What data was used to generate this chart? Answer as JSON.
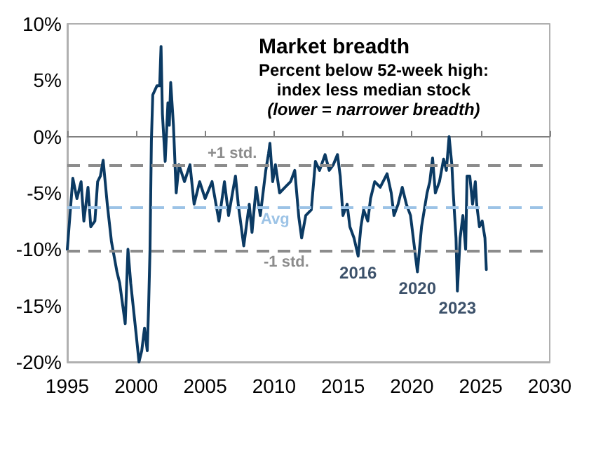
{
  "chart_data": {
    "type": "line",
    "title": "Market breadth",
    "subtitle": "Percent below 52-week high:\nindex less median stock",
    "annotations": [
      "(lower = narrower breadth)",
      {
        "text": "2016",
        "x": 2016.1,
        "y": -10.6
      },
      {
        "text": "2020",
        "x": 2020.4,
        "y": -12
      },
      {
        "text": "2023",
        "x": 2023.3,
        "y": -13.7
      }
    ],
    "series": [
      {
        "color": "#0b3a63",
        "x": [
          1995.0,
          1995.4,
          1995.7,
          1996.0,
          1996.2,
          1996.5,
          1996.7,
          1997.0,
          1997.2,
          1997.4,
          1997.6,
          1997.9,
          1998.2,
          1998.6,
          1998.8,
          1999.2,
          1999.4,
          1999.6,
          2000.0,
          2000.2,
          2000.4,
          2000.6,
          2000.8,
          2000.9,
          2001.0,
          2001.1,
          2001.2,
          2001.5,
          2001.7,
          2001.8,
          2001.9,
          2002.1,
          2002.3,
          2002.4,
          2002.5,
          2002.7,
          2002.9,
          2003.1,
          2003.5,
          2003.9,
          2004.2,
          2004.6,
          2005.0,
          2005.5,
          2006.0,
          2006.4,
          2006.7,
          2007.2,
          2007.4,
          2007.8,
          2008.2,
          2008.4,
          2008.7,
          2009.0,
          2009.4,
          2009.6,
          2009.7,
          2009.9,
          2010.1,
          2010.4,
          2010.8,
          2011.2,
          2011.5,
          2011.8,
          2012.0,
          2012.3,
          2012.7,
          2013.0,
          2013.3,
          2013.7,
          2014.0,
          2014.3,
          2014.6,
          2014.8,
          2015.0,
          2015.3,
          2015.5,
          2015.8,
          2016.1,
          2016.3,
          2016.5,
          2016.8,
          2017.0,
          2017.3,
          2017.7,
          2018.2,
          2018.5,
          2018.7,
          2019.0,
          2019.3,
          2019.6,
          2019.9,
          2020.2,
          2020.4,
          2020.7,
          2020.9,
          2021.1,
          2021.3,
          2021.5,
          2021.7,
          2022.0,
          2022.3,
          2022.5,
          2022.7,
          2022.9,
          2023.0,
          2023.2,
          2023.3,
          2023.5,
          2023.7,
          2023.9,
          2024.0,
          2024.2,
          2024.4,
          2024.6,
          2024.7,
          2024.9,
          2025.1,
          2025.3,
          2025.4
        ],
        "values": [
          -10,
          -3.7,
          -5.5,
          -4,
          -7.5,
          -4.5,
          -8,
          -7.5,
          -4,
          -3.5,
          -2.1,
          -6,
          -9.3,
          -12,
          -13,
          -16.6,
          -10,
          -13,
          -17.6,
          -20,
          -19,
          -17,
          -19,
          -15,
          -10,
          -0.4,
          3.7,
          4.5,
          4.5,
          8,
          2,
          -2.2,
          3,
          1,
          4.8,
          1,
          -5,
          -2.5,
          -4,
          -2.5,
          -6,
          -4,
          -5.5,
          -4,
          -7.5,
          -4,
          -7,
          -3.5,
          -6,
          -9.7,
          -6,
          -8.5,
          -4.5,
          -7,
          -3,
          -1.5,
          -0.6,
          -4,
          -2.5,
          -5,
          -4.5,
          -4,
          -3,
          -7.2,
          -9,
          -7,
          -6.5,
          -2.2,
          -3,
          -1.6,
          -3,
          -2.5,
          -1.6,
          -3.5,
          -7,
          -6,
          -8,
          -9,
          -10.6,
          -8,
          -6.5,
          -7.5,
          -5.5,
          -4,
          -4.5,
          -3.3,
          -5,
          -7,
          -6,
          -4.5,
          -6,
          -7,
          -10,
          -12,
          -8,
          -6.5,
          -5,
          -4,
          -1.9,
          -5,
          -4,
          -2,
          -3,
          0,
          -2.5,
          -5,
          -9,
          -13.7,
          -9,
          -7,
          -10,
          -3.5,
          -3.5,
          -6,
          -4,
          -6,
          -8,
          -7.5,
          -9,
          -11.8
        ]
      }
    ],
    "xlim": [
      1995,
      2030
    ],
    "xticks": [
      1995,
      2000,
      2005,
      2010,
      2015,
      2020,
      2025,
      2030
    ],
    "ylim": [
      -20,
      10
    ],
    "yticks": [
      {
        "value": -20,
        "label": "-20%"
      },
      {
        "value": -15,
        "label": "-15%"
      },
      {
        "value": -10,
        "label": "-10%"
      },
      {
        "value": -5,
        "label": "-5%"
      },
      {
        "value": 0,
        "label": "0%"
      },
      {
        "value": 5,
        "label": "5%"
      },
      {
        "value": 10,
        "label": "10%"
      }
    ],
    "ref_lines": [
      {
        "axis": "y",
        "value": -2.6,
        "label": "+1 std.",
        "color": "#8c8c8c",
        "line_style": "dashed"
      },
      {
        "axis": "y",
        "value": -6.3,
        "label": "Avg",
        "color": "#9cc3e6",
        "line_style": "dashed"
      },
      {
        "axis": "y",
        "value": -10.1,
        "label": "-1 std.",
        "color": "#8c8c8c",
        "line_style": "dashed"
      }
    ],
    "grid": false,
    "marker": "none",
    "line_style": "solid"
  }
}
